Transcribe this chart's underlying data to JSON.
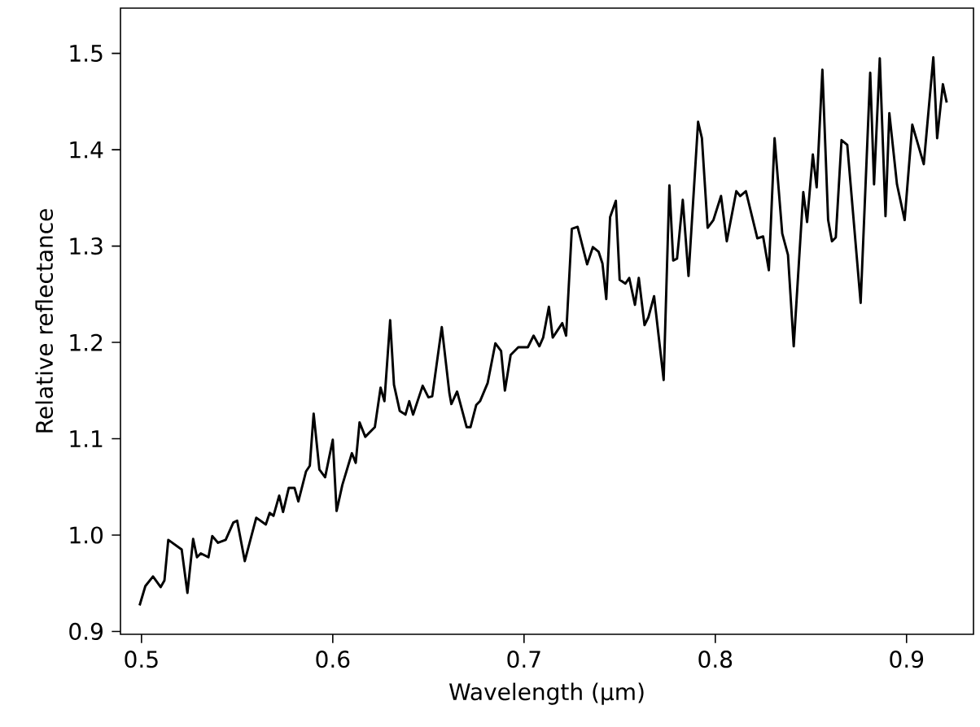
{
  "chart_data": {
    "type": "line",
    "xlabel": "Wavelength (μm)",
    "ylabel": "Relative reflectance",
    "xlim": [
      0.489,
      0.935
    ],
    "ylim": [
      0.897,
      1.547
    ],
    "xticks": [
      0.5,
      0.6,
      0.7,
      0.8,
      0.9
    ],
    "yticks": [
      0.9,
      {
        "value": 1.0,
        "label": "1.0"
      },
      1.1,
      1.2,
      1.3,
      1.4,
      1.5
    ],
    "grid": false,
    "marker": "none",
    "line_style": "solid",
    "series": [
      {
        "color": "#000000",
        "x": [
          0.499,
          0.502,
          0.506,
          0.51,
          0.512,
          0.514,
          0.521,
          0.524,
          0.527,
          0.529,
          0.531,
          0.535,
          0.537,
          0.54,
          0.544,
          0.548,
          0.55,
          0.554,
          0.56,
          0.565,
          0.567,
          0.569,
          0.572,
          0.574,
          0.577,
          0.58,
          0.582,
          0.586,
          0.588,
          0.59,
          0.593,
          0.596,
          0.6,
          0.602,
          0.605,
          0.61,
          0.612,
          0.614,
          0.617,
          0.622,
          0.625,
          0.627,
          0.63,
          0.632,
          0.635,
          0.638,
          0.64,
          0.642,
          0.647,
          0.65,
          0.652,
          0.657,
          0.661,
          0.662,
          0.665,
          0.67,
          0.672,
          0.675,
          0.677,
          0.681,
          0.685,
          0.688,
          0.69,
          0.693,
          0.697,
          0.702,
          0.705,
          0.708,
          0.71,
          0.713,
          0.715,
          0.72,
          0.722,
          0.725,
          0.728,
          0.733,
          0.736,
          0.739,
          0.741,
          0.743,
          0.745,
          0.748,
          0.75,
          0.753,
          0.755,
          0.758,
          0.76,
          0.763,
          0.765,
          0.768,
          0.773,
          0.776,
          0.778,
          0.78,
          0.783,
          0.786,
          0.791,
          0.793,
          0.796,
          0.799,
          0.803,
          0.806,
          0.811,
          0.813,
          0.816,
          0.822,
          0.825,
          0.828,
          0.831,
          0.835,
          0.838,
          0.841,
          0.846,
          0.848,
          0.851,
          0.853,
          0.856,
          0.859,
          0.861,
          0.863,
          0.866,
          0.869,
          0.876,
          0.881,
          0.883,
          0.886,
          0.889,
          0.891,
          0.895,
          0.899,
          0.903,
          0.909,
          0.914,
          0.916,
          0.919,
          0.921
        ],
        "values": [
          0.927,
          0.947,
          0.957,
          0.946,
          0.953,
          0.995,
          0.985,
          0.94,
          0.996,
          0.977,
          0.981,
          0.977,
          0.999,
          0.992,
          0.995,
          1.013,
          1.015,
          0.973,
          1.018,
          1.011,
          1.023,
          1.02,
          1.041,
          1.024,
          1.049,
          1.049,
          1.035,
          1.066,
          1.072,
          1.126,
          1.068,
          1.06,
          1.099,
          1.025,
          1.052,
          1.085,
          1.075,
          1.117,
          1.102,
          1.112,
          1.153,
          1.139,
          1.223,
          1.156,
          1.129,
          1.125,
          1.139,
          1.125,
          1.155,
          1.143,
          1.144,
          1.216,
          1.147,
          1.136,
          1.149,
          1.112,
          1.112,
          1.135,
          1.139,
          1.158,
          1.199,
          1.191,
          1.15,
          1.187,
          1.195,
          1.195,
          1.207,
          1.196,
          1.205,
          1.237,
          1.205,
          1.22,
          1.207,
          1.318,
          1.32,
          1.281,
          1.299,
          1.294,
          1.282,
          1.245,
          1.33,
          1.347,
          1.265,
          1.261,
          1.267,
          1.239,
          1.267,
          1.218,
          1.226,
          1.248,
          1.161,
          1.363,
          1.285,
          1.287,
          1.348,
          1.269,
          1.429,
          1.412,
          1.319,
          1.327,
          1.352,
          1.305,
          1.357,
          1.352,
          1.357,
          1.308,
          1.31,
          1.275,
          1.412,
          1.313,
          1.291,
          1.196,
          1.356,
          1.325,
          1.395,
          1.361,
          1.483,
          1.327,
          1.305,
          1.309,
          1.41,
          1.405,
          1.241,
          1.48,
          1.364,
          1.495,
          1.331,
          1.438,
          1.364,
          1.327,
          1.426,
          1.385,
          1.496,
          1.412,
          1.468,
          1.449
        ]
      }
    ]
  }
}
